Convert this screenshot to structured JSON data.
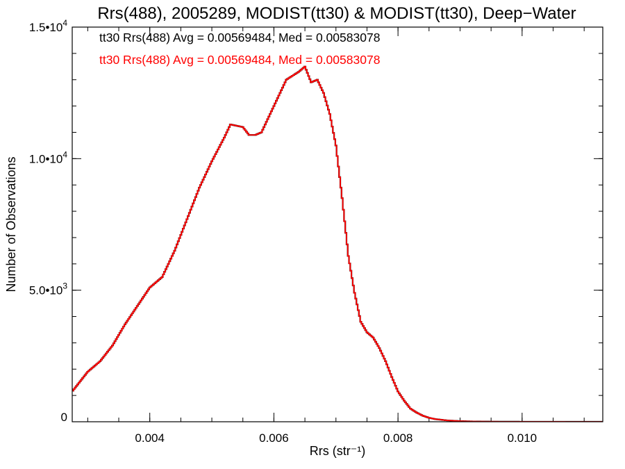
{
  "chart_data": {
    "type": "step",
    "title": "Rrs(488), 2005289, MODIST(tt30) & MODIST(tt30), Deep−Water",
    "xlabel": "Rrs (str⁻¹)",
    "ylabel": "Number of Observations",
    "xlim": [
      0.00275,
      0.0113
    ],
    "ylim": [
      0,
      15000
    ],
    "x_ticks": [
      {
        "value": 0.004,
        "label": "0.004"
      },
      {
        "value": 0.006,
        "label": "0.006"
      },
      {
        "value": 0.008,
        "label": "0.008"
      },
      {
        "value": 0.01,
        "label": "0.010"
      }
    ],
    "y_ticks": [
      {
        "value": 0,
        "mant": "0",
        "exp": ""
      },
      {
        "value": 5000,
        "mant": "5.0•10",
        "exp": "3"
      },
      {
        "value": 10000,
        "mant": "1.0•10",
        "exp": "4"
      },
      {
        "value": 15000,
        "mant": "1.5•10",
        "exp": "4"
      }
    ],
    "x_minor_step": 0.0005,
    "y_minor_step": 1000,
    "grid": false,
    "legend_position": "top-left",
    "series": [
      {
        "name": "tt30 Rrs(488) Avg = 0.00569484, Med = 0.00583078",
        "color": "#000000",
        "points": [
          [
            0.00275,
            1150
          ],
          [
            0.003,
            1900
          ],
          [
            0.0032,
            2300
          ],
          [
            0.0034,
            2900
          ],
          [
            0.0036,
            3700
          ],
          [
            0.0038,
            4400
          ],
          [
            0.004,
            5100
          ],
          [
            0.0042,
            5500
          ],
          [
            0.0044,
            6500
          ],
          [
            0.0046,
            7700
          ],
          [
            0.0048,
            8900
          ],
          [
            0.005,
            9900
          ],
          [
            0.0052,
            10800
          ],
          [
            0.0053,
            11300
          ],
          [
            0.0055,
            11200
          ],
          [
            0.0056,
            10900
          ],
          [
            0.0057,
            10900
          ],
          [
            0.0058,
            11000
          ],
          [
            0.006,
            12000
          ],
          [
            0.0062,
            13000
          ],
          [
            0.0064,
            13300
          ],
          [
            0.0065,
            13500
          ],
          [
            0.0066,
            12900
          ],
          [
            0.0067,
            13000
          ],
          [
            0.0068,
            12500
          ],
          [
            0.0069,
            11700
          ],
          [
            0.007,
            10500
          ],
          [
            0.0071,
            8500
          ],
          [
            0.0072,
            6300
          ],
          [
            0.0073,
            4900
          ],
          [
            0.0074,
            3800
          ],
          [
            0.0075,
            3400
          ],
          [
            0.0076,
            3200
          ],
          [
            0.0077,
            2800
          ],
          [
            0.0078,
            2300
          ],
          [
            0.0079,
            1700
          ],
          [
            0.008,
            1150
          ],
          [
            0.0081,
            800
          ],
          [
            0.0082,
            500
          ],
          [
            0.0083,
            350
          ],
          [
            0.0084,
            230
          ],
          [
            0.0085,
            150
          ],
          [
            0.0086,
            100
          ],
          [
            0.0088,
            50
          ],
          [
            0.009,
            25
          ],
          [
            0.0092,
            12
          ],
          [
            0.0095,
            5
          ],
          [
            0.01,
            2
          ],
          [
            0.0113,
            0
          ]
        ]
      },
      {
        "name": "tt30 Rrs(488) Avg = 0.00569484, Med = 0.00583078",
        "color": "#ff0000",
        "points": [
          [
            0.00275,
            1150
          ],
          [
            0.003,
            1900
          ],
          [
            0.0032,
            2300
          ],
          [
            0.0034,
            2900
          ],
          [
            0.0036,
            3700
          ],
          [
            0.0038,
            4400
          ],
          [
            0.004,
            5100
          ],
          [
            0.0042,
            5500
          ],
          [
            0.0044,
            6500
          ],
          [
            0.0046,
            7700
          ],
          [
            0.0048,
            8900
          ],
          [
            0.005,
            9900
          ],
          [
            0.0052,
            10800
          ],
          [
            0.0053,
            11300
          ],
          [
            0.0055,
            11200
          ],
          [
            0.0056,
            10900
          ],
          [
            0.0057,
            10900
          ],
          [
            0.0058,
            11000
          ],
          [
            0.006,
            12000
          ],
          [
            0.0062,
            13000
          ],
          [
            0.0064,
            13300
          ],
          [
            0.0065,
            13500
          ],
          [
            0.0066,
            12900
          ],
          [
            0.0067,
            13000
          ],
          [
            0.0068,
            12500
          ],
          [
            0.0069,
            11700
          ],
          [
            0.007,
            10500
          ],
          [
            0.0071,
            8500
          ],
          [
            0.0072,
            6300
          ],
          [
            0.0073,
            4900
          ],
          [
            0.0074,
            3800
          ],
          [
            0.0075,
            3400
          ],
          [
            0.0076,
            3200
          ],
          [
            0.0077,
            2800
          ],
          [
            0.0078,
            2300
          ],
          [
            0.0079,
            1700
          ],
          [
            0.008,
            1150
          ],
          [
            0.0081,
            800
          ],
          [
            0.0082,
            500
          ],
          [
            0.0083,
            350
          ],
          [
            0.0084,
            230
          ],
          [
            0.0085,
            150
          ],
          [
            0.0086,
            100
          ],
          [
            0.0088,
            50
          ],
          [
            0.009,
            25
          ],
          [
            0.0092,
            12
          ],
          [
            0.0095,
            5
          ],
          [
            0.01,
            2
          ],
          [
            0.0113,
            0
          ]
        ]
      }
    ]
  }
}
